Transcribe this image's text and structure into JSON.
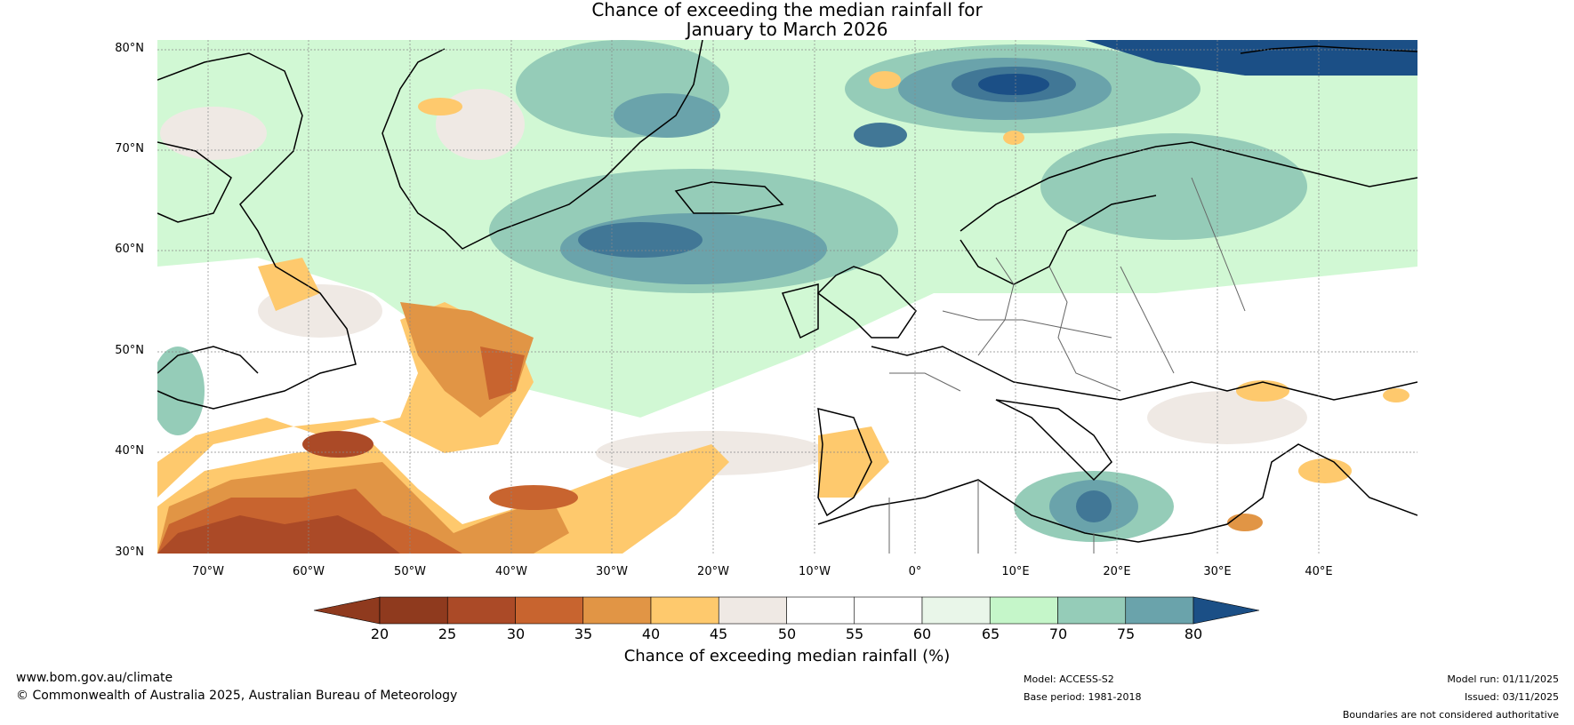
{
  "title": {
    "line1": "Chance of exceeding the median rainfall for",
    "line2": "January to March 2026"
  },
  "map": {
    "lat_labels": [
      "80°N",
      "70°N",
      "60°N",
      "50°N",
      "40°N",
      "30°N"
    ],
    "lon_labels": [
      "70°W",
      "60°W",
      "50°W",
      "40°W",
      "30°W",
      "20°W",
      "10°W",
      "0°",
      "10°E",
      "20°E",
      "30°E",
      "40°E"
    ]
  },
  "colorbar": {
    "ticks": [
      "20",
      "25",
      "30",
      "35",
      "40",
      "45",
      "50",
      "55",
      "60",
      "65",
      "70",
      "75",
      "80"
    ],
    "colors": [
      "#8f3a1e",
      "#ab4a27",
      "#c8642f",
      "#e19545",
      "#fec96d",
      "#efe9e4",
      "#ffffff",
      "#ffffff",
      "#e9f6e9",
      "#c5f6c9",
      "#95ccb8",
      "#6aa3ab",
      "#417796"
    ],
    "low_extension_color": "#8f3a1e",
    "high_extension_color": "#1b4f86",
    "label": "Chance of exceeding median rainfall (%)"
  },
  "footer": {
    "website": "www.bom.gov.au/climate",
    "copyright": "© Commonwealth of Australia 2025, Australian Bureau of Meteorology",
    "model": "Model: ACCESS-S2",
    "base_period": "Base period: 1981-2018",
    "model_run": "Model run: 01/11/2025",
    "issued": "Issued: 03/11/2025",
    "disclaimer": "Boundaries are not considered authoritative"
  }
}
